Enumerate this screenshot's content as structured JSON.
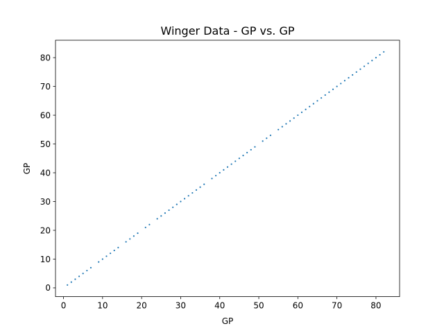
{
  "chart_data": {
    "type": "scatter",
    "title": "Winger Data - GP vs. GP",
    "xlabel": "GP",
    "ylabel": "GP",
    "xlim": [
      -2.05,
      86.05
    ],
    "ylim": [
      -3.05,
      86.05
    ],
    "xticks": [
      0,
      10,
      20,
      30,
      40,
      50,
      60,
      70,
      80
    ],
    "yticks": [
      0,
      10,
      20,
      30,
      40,
      50,
      60,
      70,
      80
    ],
    "grid": false,
    "color": "#1f77b4",
    "series": [
      {
        "x": [
          1,
          2,
          3,
          4,
          5,
          6,
          7,
          9,
          10,
          11,
          12,
          13,
          14,
          16,
          17,
          18,
          19,
          21,
          22,
          24,
          25,
          26,
          27,
          28,
          29,
          30,
          31,
          32,
          33,
          34,
          35,
          36,
          38,
          39,
          40,
          41,
          42,
          43,
          44,
          45,
          46,
          47,
          48,
          49,
          51,
          52,
          53,
          55,
          56,
          57,
          58,
          59,
          60,
          61,
          62,
          63,
          64,
          65,
          66,
          67,
          68,
          69,
          70,
          71,
          72,
          73,
          74,
          75,
          76,
          77,
          78,
          79,
          80,
          81,
          82
        ],
        "y": [
          1,
          2,
          3,
          4,
          5,
          6,
          7,
          9,
          10,
          11,
          12,
          13,
          14,
          16,
          17,
          18,
          19,
          21,
          22,
          24,
          25,
          26,
          27,
          28,
          29,
          30,
          31,
          32,
          33,
          34,
          35,
          36,
          38,
          39,
          40,
          41,
          42,
          43,
          44,
          45,
          46,
          47,
          48,
          49,
          51,
          52,
          53,
          55,
          56,
          57,
          58,
          59,
          60,
          61,
          62,
          63,
          64,
          65,
          66,
          67,
          68,
          69,
          70,
          71,
          72,
          73,
          74,
          75,
          76,
          77,
          78,
          79,
          80,
          81,
          82
        ]
      }
    ]
  }
}
